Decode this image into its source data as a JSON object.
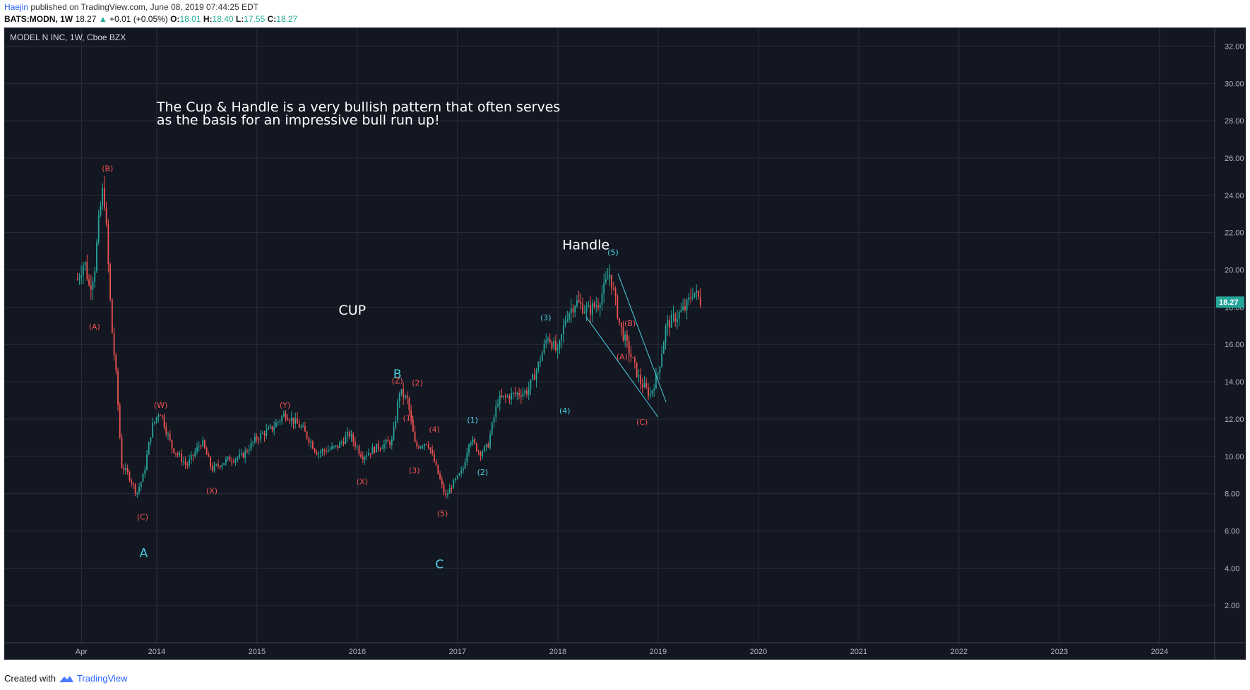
{
  "header": {
    "user": "Haejin",
    "published_text": "published on TradingView.com, June 08, 2019 07:44:25 EDT",
    "symbol": "BATS:MODN, 1W",
    "last": "18.27",
    "change": "+0.01 (+0.05%)",
    "open_label": "O:",
    "open": "18.01",
    "high_label": "H:",
    "high": "18.40",
    "low_label": "L:",
    "low": "17.55",
    "close_label": "C:",
    "close": "18.27"
  },
  "footer": {
    "created": "Created with",
    "brand": "TradingView"
  },
  "chart_data": {
    "type": "candlestick",
    "title": "MODEL N INC, 1W, Cboe BZX",
    "ylim": [
      0,
      33
    ],
    "y_ticks": [
      "2.00",
      "4.00",
      "6.00",
      "8.00",
      "10.00",
      "12.00",
      "14.00",
      "16.00",
      "18.00",
      "20.00",
      "22.00",
      "24.00",
      "26.00",
      "28.00",
      "30.00",
      "32.00"
    ],
    "x_ticks": [
      {
        "label": "Apr",
        "t": 2013.25
      },
      {
        "label": "2014",
        "t": 2014.0
      },
      {
        "label": "2015",
        "t": 2015.0
      },
      {
        "label": "2016",
        "t": 2016.0
      },
      {
        "label": "2017",
        "t": 2017.0
      },
      {
        "label": "2018",
        "t": 2018.0
      },
      {
        "label": "2019",
        "t": 2019.0
      },
      {
        "label": "2020",
        "t": 2020.0
      },
      {
        "label": "2021",
        "t": 2021.0
      },
      {
        "label": "2022",
        "t": 2022.0
      },
      {
        "label": "2023",
        "t": 2023.0
      },
      {
        "label": "2024",
        "t": 2024.0
      }
    ],
    "last_price": "18.27",
    "colors": {
      "up": "#26a69a",
      "down": "#ef5350",
      "background": "#131722",
      "grid": "#2a2e39",
      "wave_cyan": "#4dd0e1",
      "wave_red": "#ef5350",
      "price_tag": "#26a69a"
    },
    "price_path": [
      [
        2013.21,
        19.5
      ],
      [
        2013.28,
        20.5
      ],
      [
        2013.33,
        19.0
      ],
      [
        2013.38,
        20.0
      ],
      [
        2013.43,
        23.0
      ],
      [
        2013.47,
        24.5
      ],
      [
        2013.5,
        22.0
      ],
      [
        2013.55,
        17.0
      ],
      [
        2013.6,
        14.0
      ],
      [
        2013.65,
        9.5
      ],
      [
        2013.72,
        9.0
      ],
      [
        2013.8,
        8.0
      ],
      [
        2013.87,
        9.0
      ],
      [
        2013.95,
        11.5
      ],
      [
        2014.03,
        12.5
      ],
      [
        2014.15,
        10.5
      ],
      [
        2014.3,
        9.5
      ],
      [
        2014.45,
        10.8
      ],
      [
        2014.55,
        9.3
      ],
      [
        2014.7,
        9.8
      ],
      [
        2014.85,
        10.0
      ],
      [
        2015.0,
        11.0
      ],
      [
        2015.15,
        11.5
      ],
      [
        2015.28,
        12.3
      ],
      [
        2015.45,
        11.5
      ],
      [
        2015.6,
        10.2
      ],
      [
        2015.8,
        10.5
      ],
      [
        2015.92,
        11.2
      ],
      [
        2016.05,
        10.0
      ],
      [
        2016.2,
        10.5
      ],
      [
        2016.35,
        10.8
      ],
      [
        2016.42,
        13.5
      ],
      [
        2016.5,
        13.0
      ],
      [
        2016.58,
        10.5
      ],
      [
        2016.7,
        10.8
      ],
      [
        2016.78,
        9.5
      ],
      [
        2016.88,
        7.8
      ],
      [
        2016.95,
        8.5
      ],
      [
        2017.05,
        9.2
      ],
      [
        2017.12,
        11.0
      ],
      [
        2017.22,
        10.2
      ],
      [
        2017.3,
        10.5
      ],
      [
        2017.4,
        13.0
      ],
      [
        2017.55,
        13.3
      ],
      [
        2017.7,
        13.5
      ],
      [
        2017.8,
        14.8
      ],
      [
        2017.9,
        16.5
      ],
      [
        2018.0,
        15.5
      ],
      [
        2018.08,
        17.5
      ],
      [
        2018.18,
        18.3
      ],
      [
        2018.3,
        17.8
      ],
      [
        2018.4,
        18.2
      ],
      [
        2018.52,
        19.8
      ],
      [
        2018.62,
        17.0
      ],
      [
        2018.72,
        15.5
      ],
      [
        2018.82,
        14.0
      ],
      [
        2018.92,
        13.3
      ],
      [
        2019.0,
        14.5
      ],
      [
        2019.08,
        17.0
      ],
      [
        2019.18,
        17.5
      ],
      [
        2019.28,
        18.0
      ],
      [
        2019.35,
        18.9
      ],
      [
        2019.43,
        18.27
      ]
    ],
    "annotations": [
      {
        "text": "The Cup & Handle is a very bullish pattern that often serves",
        "t": 2014.0,
        "y": 28.5,
        "kind": "note"
      },
      {
        "text": "as the basis for an impressive bull run up!",
        "t": 2014.0,
        "y": 27.8,
        "kind": "note"
      },
      {
        "text": "CUP",
        "t": 2015.95,
        "y": 17.6,
        "kind": "big"
      },
      {
        "text": "Handle",
        "t": 2018.28,
        "y": 21.1,
        "kind": "big"
      },
      {
        "text": "A",
        "t": 2013.87,
        "y": 4.6,
        "kind": "cyan"
      },
      {
        "text": "B",
        "t": 2016.4,
        "y": 14.2,
        "kind": "cyan"
      },
      {
        "text": "C",
        "t": 2016.82,
        "y": 4.0,
        "kind": "cyan"
      },
      {
        "text": "(B)",
        "t": 2013.51,
        "y": 25.3,
        "kind": "red"
      },
      {
        "text": "(A)",
        "t": 2013.38,
        "y": 16.8,
        "kind": "red"
      },
      {
        "text": "(C)",
        "t": 2013.86,
        "y": 6.6,
        "kind": "red"
      },
      {
        "text": "(W)",
        "t": 2014.04,
        "y": 12.6,
        "kind": "red"
      },
      {
        "text": "(X)",
        "t": 2014.55,
        "y": 8.0,
        "kind": "red"
      },
      {
        "text": "(Y)",
        "t": 2015.28,
        "y": 12.6,
        "kind": "red"
      },
      {
        "text": "(X)",
        "t": 2016.05,
        "y": 8.5,
        "kind": "red"
      },
      {
        "text": "(Z)",
        "t": 2016.4,
        "y": 13.9,
        "kind": "red"
      },
      {
        "text": "(2)",
        "t": 2016.6,
        "y": 13.8,
        "kind": "red"
      },
      {
        "text": "(1)",
        "t": 2016.51,
        "y": 11.9,
        "kind": "red"
      },
      {
        "text": "(4)",
        "t": 2016.77,
        "y": 11.3,
        "kind": "red"
      },
      {
        "text": "(3)",
        "t": 2016.57,
        "y": 9.1,
        "kind": "red"
      },
      {
        "text": "(5)",
        "t": 2016.85,
        "y": 6.8,
        "kind": "red"
      },
      {
        "text": "(1)",
        "t": 2017.15,
        "y": 11.8,
        "kind": "cyan-small"
      },
      {
        "text": "(2)",
        "t": 2017.25,
        "y": 9.0,
        "kind": "cyan-small"
      },
      {
        "text": "(3)",
        "t": 2017.88,
        "y": 17.3,
        "kind": "cyan-small"
      },
      {
        "text": "(4)",
        "t": 2018.07,
        "y": 12.3,
        "kind": "cyan-small"
      },
      {
        "text": "(5)",
        "t": 2018.55,
        "y": 20.8,
        "kind": "cyan-small"
      },
      {
        "text": "(B)",
        "t": 2018.72,
        "y": 17.0,
        "kind": "red"
      },
      {
        "text": "(A)",
        "t": 2018.64,
        "y": 15.2,
        "kind": "red"
      },
      {
        "text": "(C)",
        "t": 2018.84,
        "y": 11.7,
        "kind": "red"
      }
    ],
    "trendlines": [
      {
        "from": [
          2018.6,
          19.8
        ],
        "to": [
          2019.08,
          12.9
        ]
      },
      {
        "from": [
          2018.28,
          17.5
        ],
        "to": [
          2019.0,
          12.1
        ]
      }
    ]
  }
}
